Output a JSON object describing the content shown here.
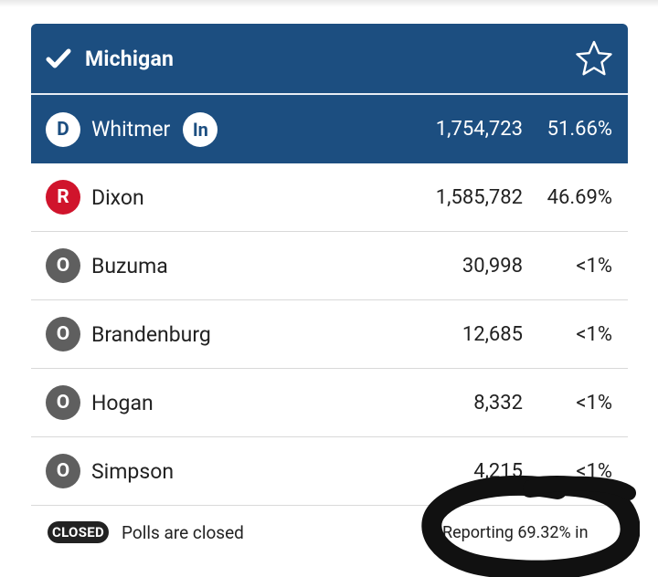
{
  "state": {
    "title": "Michigan",
    "check_icon": "check-icon",
    "star_icon": "star-outline-icon"
  },
  "colors": {
    "header_blue": "#1c4e80",
    "republican_red": "#d0142c",
    "other_gray": "#5f5f5f"
  },
  "candidates": [
    {
      "party": "D",
      "name": "Whitmer",
      "incumbent_label": "In",
      "votes": "1,754,723",
      "pct": "51.66%"
    },
    {
      "party": "R",
      "name": "Dixon",
      "votes": "1,585,782",
      "pct": "46.69%"
    },
    {
      "party": "O",
      "name": "Buzuma",
      "votes": "30,998",
      "pct": "<1%"
    },
    {
      "party": "O",
      "name": "Brandenburg",
      "votes": "12,685",
      "pct": "<1%"
    },
    {
      "party": "O",
      "name": "Hogan",
      "votes": "8,332",
      "pct": "<1%"
    },
    {
      "party": "O",
      "name": "Simpson",
      "votes": "4,215",
      "pct": "<1%"
    }
  ],
  "footer": {
    "closed_label": "CLOSED",
    "polls_text": "Polls are closed",
    "reporting_text": "Reporting 69.32% in"
  }
}
